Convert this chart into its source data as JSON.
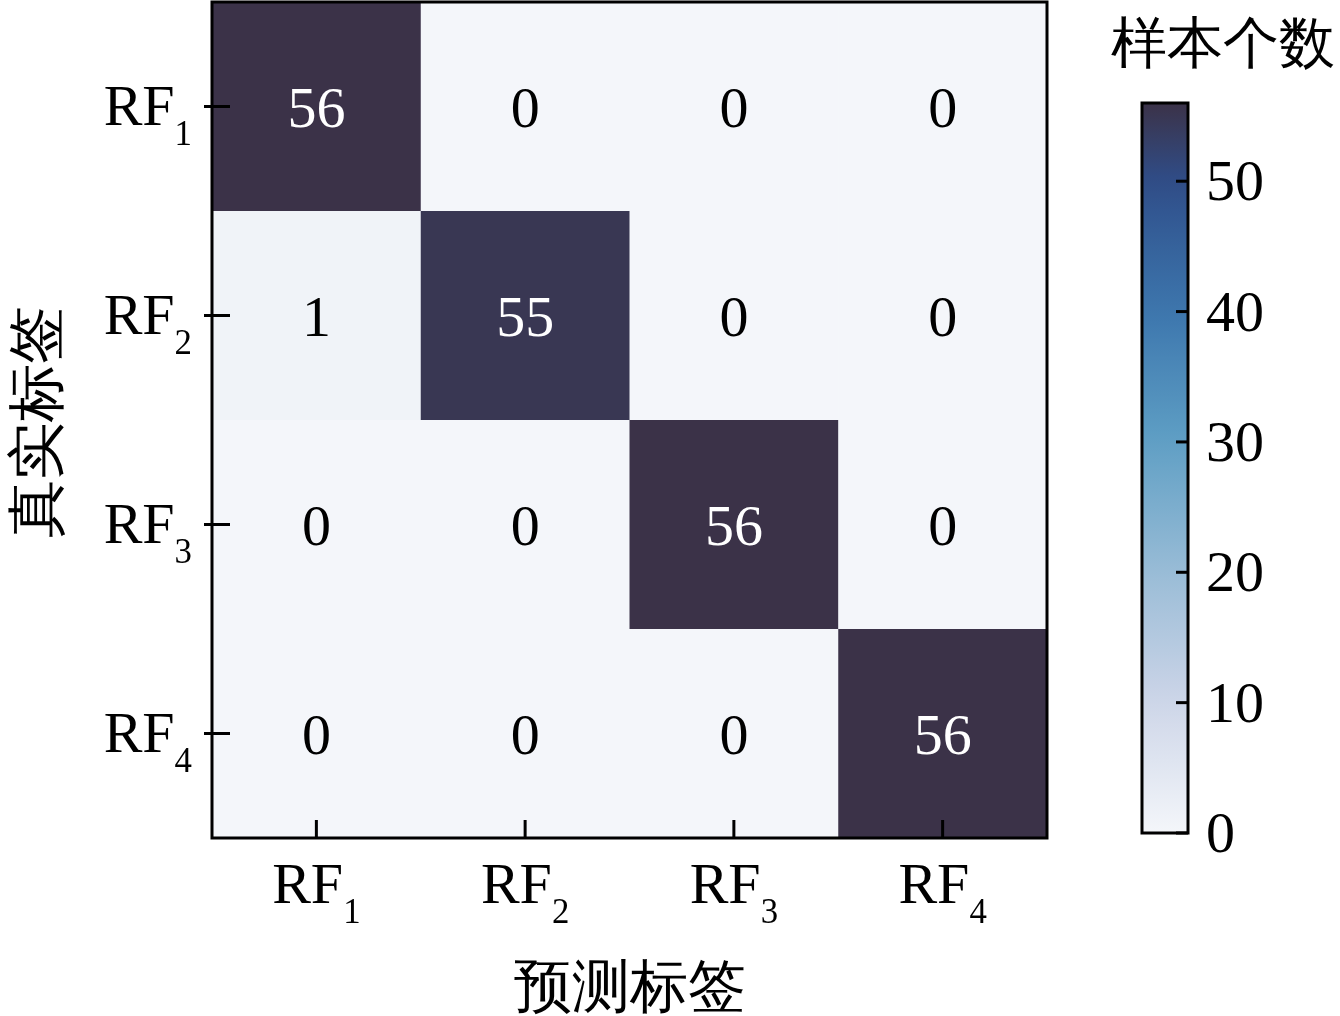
{
  "chart_data": {
    "type": "heatmap",
    "xlabel": "预测标签",
    "ylabel": "真实标签",
    "clabel": "样本个数",
    "categories": [
      "RF$_{1}$",
      "RF$_{2}$",
      "RF$_{3}$",
      "RF$_{4}$"
    ],
    "y_categories": [
      "RF$_{1}$",
      "RF$_{2}$",
      "RF$_{3}$",
      "RF$_{4}$"
    ],
    "cells": [
      [
        56,
        0,
        0,
        0
      ],
      [
        1,
        55,
        0,
        0
      ],
      [
        0,
        0,
        56,
        0
      ],
      [
        0,
        0,
        0,
        56
      ]
    ],
    "data_labels": true,
    "clim": [
      0,
      56
    ],
    "cticks": [
      0,
      10,
      20,
      30,
      40,
      50
    ]
  }
}
